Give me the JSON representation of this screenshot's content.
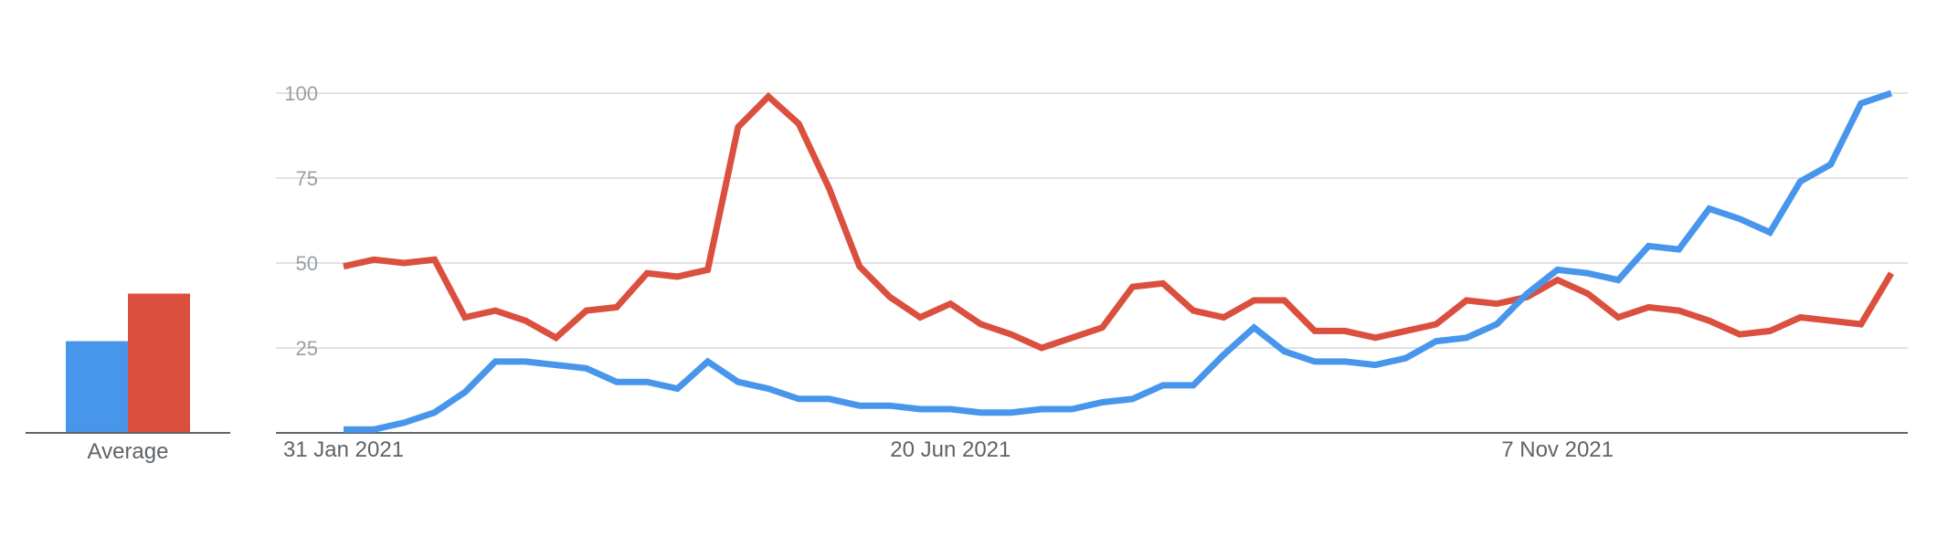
{
  "chart_data": [
    {
      "type": "bar",
      "xlabel": "Average",
      "ylim": [
        0,
        100
      ],
      "colors": [
        "#4796ec",
        "#db4f3f"
      ],
      "values": [
        27,
        41
      ]
    },
    {
      "type": "line",
      "ylim": [
        0,
        100
      ],
      "grid": true,
      "yticks": [
        "25",
        "50",
        "75",
        "100"
      ],
      "ytick_values": [
        25,
        50,
        75,
        100
      ],
      "xtick_labels": [
        "31 Jan 2021",
        "20 Jun 2021",
        "7 Nov 2021"
      ],
      "xtick_index": [
        0,
        20,
        40
      ],
      "series": [
        {
          "color": "#4796ec",
          "values": [
            1,
            1,
            3,
            6,
            12,
            21,
            21,
            20,
            19,
            15,
            15,
            13,
            21,
            15,
            13,
            10,
            10,
            8,
            8,
            7,
            7,
            6,
            6,
            7,
            7,
            9,
            10,
            14,
            14,
            23,
            31,
            24,
            21,
            21,
            20,
            22,
            27,
            28,
            32,
            41,
            48,
            47,
            45,
            55,
            54,
            66,
            63,
            59,
            74,
            79,
            97,
            100
          ]
        },
        {
          "color": "#db4f3f",
          "values": [
            49,
            51,
            50,
            51,
            34,
            36,
            33,
            28,
            36,
            37,
            47,
            46,
            48,
            90,
            99,
            91,
            72,
            49,
            40,
            34,
            38,
            32,
            29,
            25,
            28,
            31,
            43,
            44,
            36,
            34,
            39,
            39,
            30,
            30,
            28,
            30,
            32,
            39,
            38,
            40,
            45,
            41,
            34,
            37,
            36,
            33,
            29,
            30,
            34,
            33,
            32,
            47
          ]
        }
      ]
    }
  ]
}
